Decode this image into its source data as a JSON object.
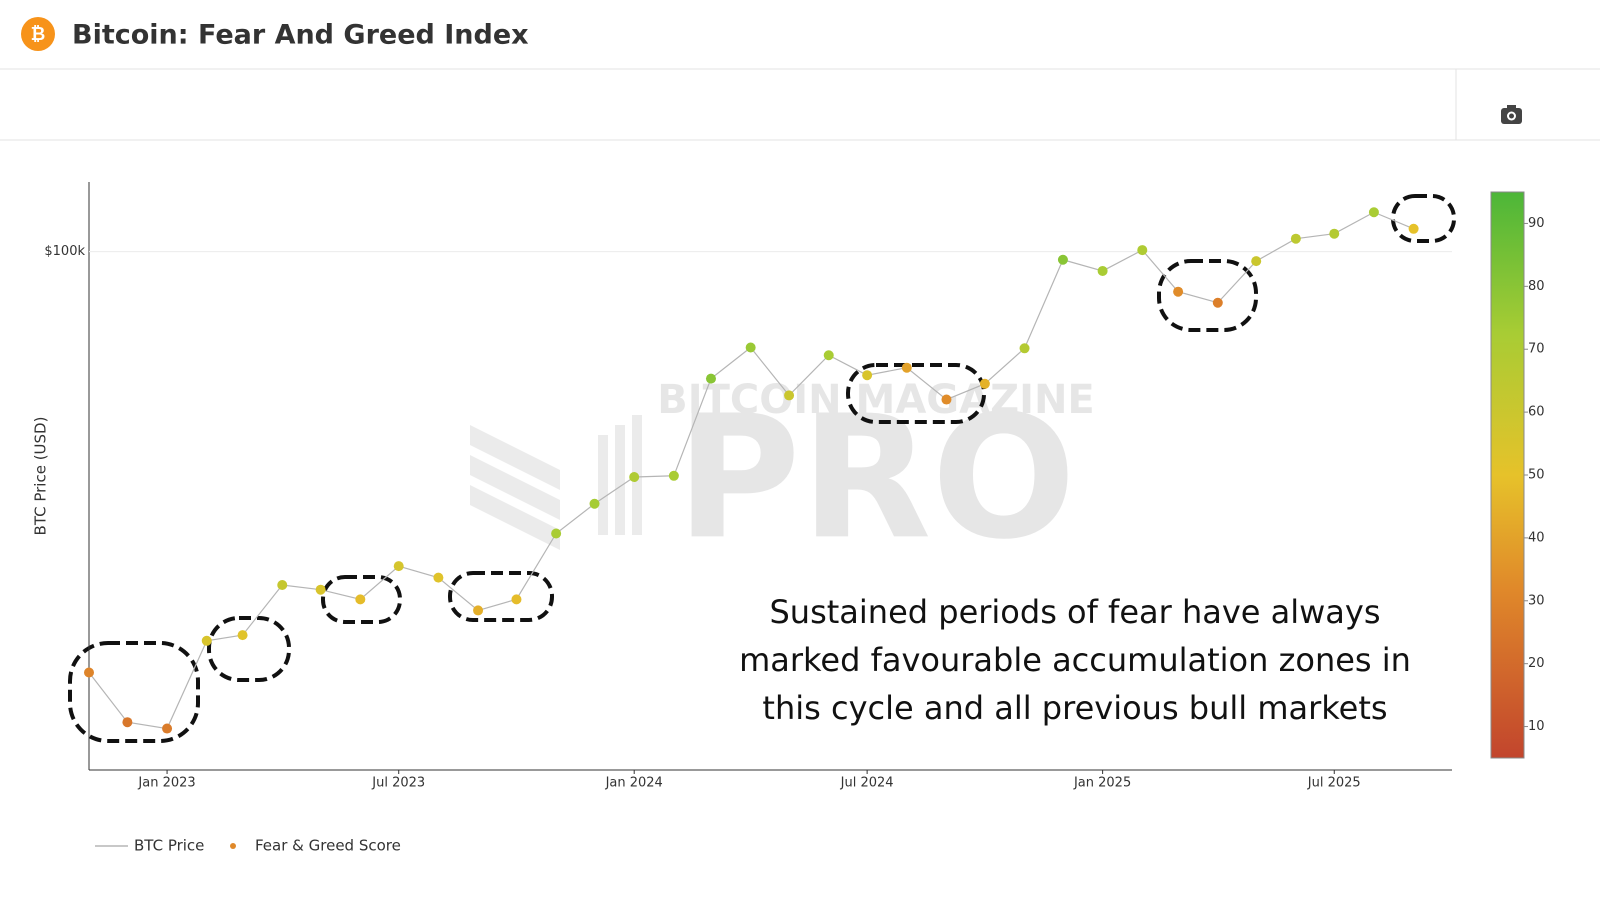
{
  "header": {
    "title": "Bitcoin: Fear And Greed Index"
  },
  "chart_data": {
    "type": "scatter-line",
    "y_label": "BTC Price (USD)",
    "annotation": [
      "Sustained periods of fear have always",
      "marked favourable accumulation zones in",
      "this cycle and all previous bull markets"
    ],
    "watermark": [
      "BITCOIN MAGAZINE",
      "PRO"
    ],
    "x": [
      "2022-11",
      "2022-12",
      "2023-01",
      "2023-02",
      "2023-03",
      "2023-04",
      "2023-05",
      "2023-06",
      "2023-07",
      "2023-08",
      "2023-09",
      "2023-10",
      "2023-11",
      "2023-12",
      "2024-01",
      "2024-02",
      "2024-03",
      "2024-04",
      "2024-05",
      "2024-06",
      "2024-07",
      "2024-08",
      "2024-09",
      "2024-10",
      "2024-11",
      "2024-12",
      "2025-01",
      "2025-02",
      "2025-03",
      "2025-04",
      "2025-05",
      "2025-06",
      "2025-07",
      "2025-08",
      "2025-09"
    ],
    "series": [
      {
        "name": "BTC Price",
        "color": "#b5b5b5",
        "values": [
          20500,
          17000,
          16600,
          23100,
          23600,
          28500,
          28000,
          27000,
          30600,
          29300,
          25900,
          27000,
          34600,
          38700,
          42800,
          43000,
          62000,
          69700,
          58200,
          67700,
          62800,
          64600,
          57300,
          60800,
          69500,
          97000,
          93000,
          100600,
          86000,
          82500,
          96500,
          105000,
          107000,
          116000,
          109000
        ]
      },
      {
        "name": "Fear & Greed Score",
        "color": "#e0892a",
        "values": [
          30,
          25,
          27,
          55,
          52,
          62,
          55,
          48,
          56,
          52,
          44,
          48,
          72,
          73,
          70,
          72,
          80,
          76,
          60,
          72,
          55,
          40,
          33,
          45,
          68,
          80,
          72,
          70,
          33,
          28,
          60,
          65,
          68,
          72,
          50
        ]
      }
    ],
    "xlim": [
      "2022-11",
      "2025-10"
    ],
    "xticks": [
      {
        "value": "2023-01",
        "label": "Jan 2023"
      },
      {
        "value": "2023-07",
        "label": "Jul 2023"
      },
      {
        "value": "2024-01",
        "label": "Jan 2024"
      },
      {
        "value": "2024-07",
        "label": "Jul 2024"
      },
      {
        "value": "2025-01",
        "label": "Jan 2025"
      },
      {
        "value": "2025-07",
        "label": "Jul 2025"
      }
    ],
    "ylim": [
      14200,
      130000
    ],
    "log_y": true,
    "yticks": [
      {
        "value": 100000,
        "label": "$100k"
      }
    ],
    "colorbar": {
      "lim": [
        5,
        95
      ],
      "ticks": [
        10,
        20,
        30,
        40,
        50,
        60,
        70,
        80,
        90
      ],
      "colorscale": [
        [
          0,
          "#c2452d"
        ],
        [
          0.3,
          "#e0892a"
        ],
        [
          0.5,
          "#e6c22a"
        ],
        [
          0.75,
          "#a8cc34"
        ],
        [
          1,
          "#4cb638"
        ]
      ]
    }
  }
}
